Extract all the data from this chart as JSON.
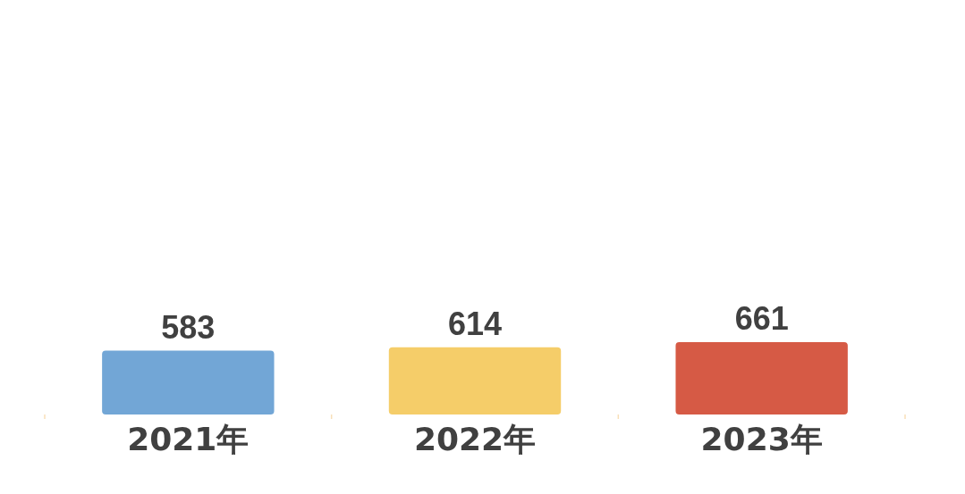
{
  "chart_data": {
    "type": "bar",
    "categories": [
      "2021年",
      "2022年",
      "2023年"
    ],
    "values": [
      583,
      614,
      661
    ],
    "colors": [
      "#72a6d6",
      "#f5cd69",
      "#d65a45"
    ],
    "data_labels": true
  }
}
